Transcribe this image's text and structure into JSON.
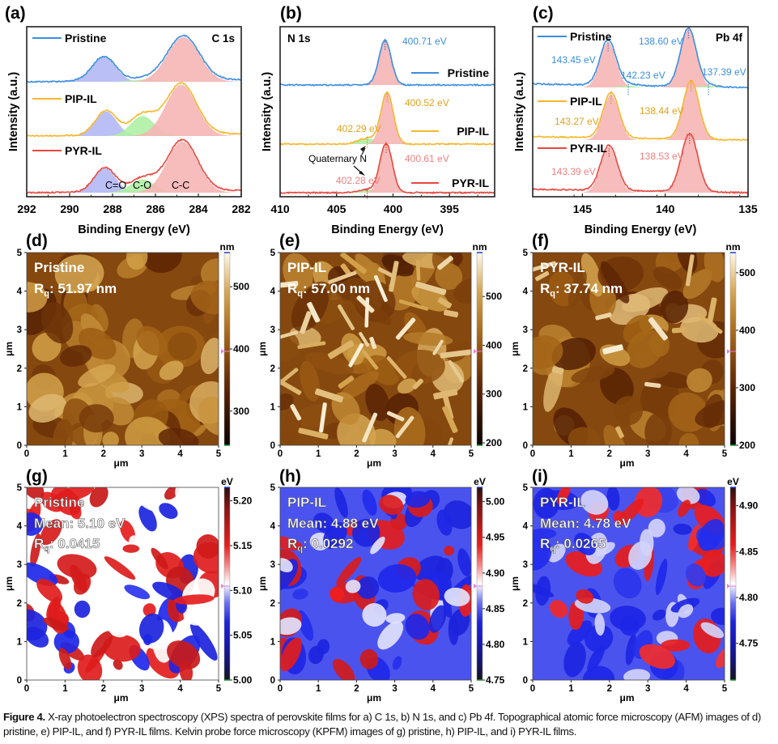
{
  "figure": {
    "caption_label": "Figure 4.",
    "caption_text": " X-ray photoelectron spectroscopy (XPS) spectra of perovskite films for a) C 1s, b) N 1s, and c) Pb 4f. Topographical atomic force microscopy (AFM) images of d) pristine, e) PIP-IL, and f) PYR-IL films. Kelvin probe force microscopy (KPFM) images of g) pristine, h) PIP-IL, and i) PYR-IL films.",
    "colors": {
      "pristine": "#3b8ee0",
      "pip": "#f5b82e",
      "pyr": "#e8483f",
      "fill_cc": "#f6b5b5",
      "fill_co": "#aef0a4",
      "fill_ceo": "#b3b8f5"
    }
  },
  "chart_data": [
    {
      "id": "a",
      "panel_label": "(a)",
      "type": "line",
      "title": "C 1s",
      "xlabel": "Binding Energy (eV)",
      "ylabel": "Intensity (a.u.)",
      "xlim": [
        292,
        282
      ],
      "xticks": [
        292,
        290,
        288,
        286,
        284,
        282
      ],
      "series": [
        {
          "name": "Pristine",
          "color": "#3b8ee0",
          "peaks": [
            {
              "center": 288.4,
              "height": 0.55,
              "width": 0.55,
              "fill": "#b3b8f5"
            },
            {
              "center": 286.5,
              "height": 0.05,
              "width": 0.6,
              "fill": "#aef0a4"
            },
            {
              "center": 284.7,
              "height": 1.0,
              "width": 0.75,
              "fill": "#f6b5b5"
            }
          ]
        },
        {
          "name": "PIP-IL",
          "color": "#f5b82e",
          "peaks": [
            {
              "center": 288.3,
              "height": 0.55,
              "width": 0.5,
              "fill": "#b3b8f5"
            },
            {
              "center": 286.6,
              "height": 0.45,
              "width": 0.55,
              "fill": "#aef0a4"
            },
            {
              "center": 284.8,
              "height": 1.15,
              "width": 0.72,
              "fill": "#f6b5b5"
            }
          ]
        },
        {
          "name": "PYR-IL",
          "color": "#e8483f",
          "peaks": [
            {
              "center": 288.35,
              "height": 0.55,
              "width": 0.5,
              "fill": "#b3b8f5"
            },
            {
              "center": 286.6,
              "height": 0.3,
              "width": 0.55,
              "fill": "#aef0a4"
            },
            {
              "center": 284.75,
              "height": 1.15,
              "width": 0.72,
              "fill": "#f6b5b5"
            }
          ]
        }
      ],
      "annotations": [
        "C=O",
        "C-O",
        "C-C"
      ]
    },
    {
      "id": "b",
      "panel_label": "(b)",
      "type": "line",
      "title": "N 1s",
      "xlabel": "Binding Energy (eV)",
      "ylabel": "Intensity (a.u.)",
      "xlim": [
        410,
        391
      ],
      "xticks": [
        410,
        405,
        400,
        395
      ],
      "series": [
        {
          "name": "Pristine",
          "color": "#3b8ee0",
          "peaks": [
            {
              "center": 400.71,
              "height": 1.0,
              "width": 0.55,
              "fill": "#f6b5b5",
              "label": "400.71 eV"
            }
          ]
        },
        {
          "name": "PIP-IL",
          "color": "#f5b82e",
          "peaks": [
            {
              "center": 402.29,
              "height": 0.13,
              "width": 0.8,
              "fill": "#aef0a4",
              "label": "402.29 eV"
            },
            {
              "center": 400.52,
              "height": 1.15,
              "width": 0.55,
              "fill": "#f6b5b5",
              "label": "400.52 eV"
            }
          ]
        },
        {
          "name": "PYR-IL",
          "color": "#e8483f",
          "peaks": [
            {
              "center": 402.28,
              "height": 0.07,
              "width": 0.8,
              "fill": "#aef0a4",
              "label": "402.28 eV"
            },
            {
              "center": 400.61,
              "height": 1.1,
              "width": 0.55,
              "fill": "#f6b5b5",
              "label": "400.61 eV"
            }
          ]
        }
      ],
      "annotations": [
        "Quaternary N"
      ]
    },
    {
      "id": "c",
      "panel_label": "(c)",
      "type": "line",
      "title": "Pb 4f",
      "xlabel": "Binding Energy (eV)",
      "ylabel": "Intensity (a.u.)",
      "xlim": [
        148,
        135
      ],
      "xticks": [
        145,
        140,
        135
      ],
      "series": [
        {
          "name": "Pristine",
          "color": "#3b8ee0",
          "peaks": [
            {
              "center": 143.45,
              "height": 0.78,
              "width": 0.48,
              "fill": "#f6b5b5",
              "label": "143.45 eV"
            },
            {
              "center": 142.23,
              "height": 0.03,
              "width": 0.5,
              "fill": "#aef0a4",
              "label": "142.23 eV"
            },
            {
              "center": 138.6,
              "height": 1.0,
              "width": 0.48,
              "fill": "#f6b5b5",
              "label": "138.60 eV"
            },
            {
              "center": 137.39,
              "height": 0.03,
              "width": 0.5,
              "fill": "#aef0a4",
              "label": "137.39 eV"
            }
          ]
        },
        {
          "name": "PIP-IL",
          "color": "#f5b82e",
          "peaks": [
            {
              "center": 143.27,
              "height": 0.78,
              "width": 0.48,
              "fill": "#f6b5b5",
              "label": "143.27 eV"
            },
            {
              "center": 138.44,
              "height": 1.0,
              "width": 0.48,
              "fill": "#f6b5b5",
              "label": "138.44 eV"
            }
          ]
        },
        {
          "name": "PYR-IL",
          "color": "#e8483f",
          "peaks": [
            {
              "center": 143.39,
              "height": 0.78,
              "width": 0.5,
              "fill": "#f6b5b5",
              "label": "143.39 eV"
            },
            {
              "center": 138.53,
              "height": 1.0,
              "width": 0.5,
              "fill": "#f6b5b5",
              "label": "138.53 eV"
            }
          ]
        }
      ]
    },
    {
      "id": "d",
      "panel_label": "(d)",
      "type": "heatmap",
      "kind": "afm",
      "sample": "Pristine",
      "metric_label": "Rq: 51.97 nm",
      "rq_value": "51.97 nm",
      "xlabel": "μm",
      "ylabel": "μm",
      "xlim": [
        0,
        5
      ],
      "ylim": [
        0,
        5
      ],
      "xticks": [
        0,
        1,
        2,
        3,
        4,
        5
      ],
      "yticks": [
        0,
        1,
        2,
        3,
        4,
        5
      ],
      "colorbar": {
        "unit": "nm",
        "ticks": [
          300,
          400,
          500
        ],
        "range": [
          245,
          555
        ]
      }
    },
    {
      "id": "e",
      "panel_label": "(e)",
      "type": "heatmap",
      "kind": "afm",
      "sample": "PIP-IL",
      "metric_label": "Rq: 57.00 nm",
      "rq_value": "57.00 nm",
      "xlabel": "μm",
      "ylabel": "μm",
      "xlim": [
        0,
        5
      ],
      "ylim": [
        0,
        5
      ],
      "xticks": [
        0,
        1,
        2,
        3,
        4,
        5
      ],
      "yticks": [
        0,
        1,
        2,
        3,
        4,
        5
      ],
      "colorbar": {
        "unit": "nm",
        "ticks": [
          200,
          300,
          400,
          500
        ],
        "range": [
          195,
          590
        ]
      }
    },
    {
      "id": "f",
      "panel_label": "(f)",
      "type": "heatmap",
      "kind": "afm",
      "sample": "PYR-IL",
      "metric_label": "Rq: 37.74 nm",
      "rq_value": "37.74 nm",
      "xlabel": "μm",
      "ylabel": "μm",
      "xlim": [
        0,
        5
      ],
      "ylim": [
        0,
        5
      ],
      "xticks": [
        0,
        1,
        2,
        3,
        4,
        5
      ],
      "yticks": [
        0,
        1,
        2,
        3,
        4,
        5
      ],
      "colorbar": {
        "unit": "nm",
        "ticks": [
          200,
          300,
          400,
          500
        ],
        "range": [
          200,
          535
        ]
      }
    },
    {
      "id": "g",
      "panel_label": "(g)",
      "type": "heatmap",
      "kind": "kpfm",
      "sample": "Pristine",
      "mean_label": "Mean: 5.10 eV",
      "rq_value": "0.0415",
      "xlabel": "μm",
      "ylabel": "μm",
      "xlim": [
        0,
        5
      ],
      "ylim": [
        0,
        5
      ],
      "xticks": [
        0,
        1,
        2,
        3,
        4,
        5
      ],
      "yticks": [
        0,
        1,
        2,
        3,
        4,
        5
      ],
      "colorbar": {
        "unit": "eV",
        "ticks": [
          5.0,
          5.05,
          5.1,
          5.15,
          5.2
        ],
        "range": [
          5.0,
          5.215
        ]
      }
    },
    {
      "id": "h",
      "panel_label": "(h)",
      "type": "heatmap",
      "kind": "kpfm",
      "sample": "PIP-IL",
      "mean_label": "Mean: 4.88 eV",
      "rq_value": "0.0292",
      "xlabel": "μm",
      "ylabel": "μm",
      "xlim": [
        0,
        5
      ],
      "ylim": [
        0,
        5
      ],
      "xticks": [
        0,
        1,
        2,
        3,
        4,
        5
      ],
      "yticks": [
        0,
        1,
        2,
        3,
        4,
        5
      ],
      "colorbar": {
        "unit": "eV",
        "ticks": [
          4.75,
          4.8,
          4.85,
          4.9,
          4.95,
          5.0
        ],
        "range": [
          4.75,
          5.02
        ]
      }
    },
    {
      "id": "i",
      "panel_label": "(i)",
      "type": "heatmap",
      "kind": "kpfm",
      "sample": "PYR-IL",
      "mean_label": "Mean: 4.78 eV",
      "rq_value": "0.0265",
      "xlabel": "μm",
      "ylabel": "μm",
      "xlim": [
        0,
        5
      ],
      "ylim": [
        0,
        5
      ],
      "xticks": [
        0,
        1,
        2,
        3,
        4,
        5
      ],
      "yticks": [
        0,
        1,
        2,
        3,
        4,
        5
      ],
      "colorbar": {
        "unit": "eV",
        "ticks": [
          4.75,
          4.8,
          4.85,
          4.9
        ],
        "range": [
          4.71,
          4.92
        ]
      }
    }
  ]
}
